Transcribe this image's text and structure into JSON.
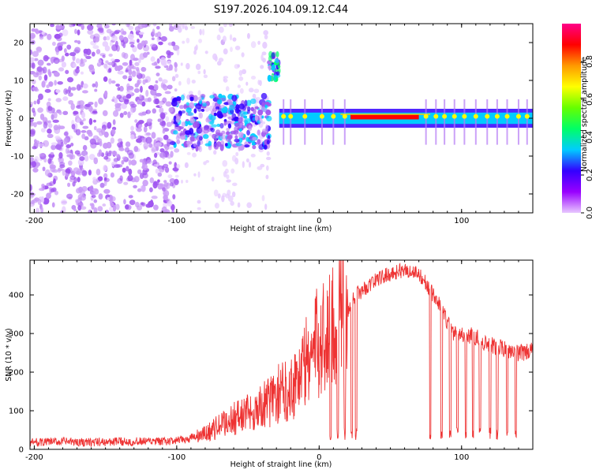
{
  "title": "S197.2026.104.09.12.C44",
  "chart_data": [
    {
      "type": "heatmap",
      "xlabel": "Height of straight line (km)",
      "ylabel": "Frequency (Hz)",
      "xlim": [
        -203,
        150
      ],
      "ylim": [
        -25,
        25
      ],
      "xticks": [
        -200,
        -100,
        0,
        100
      ],
      "xtick_labels": [
        "-200",
        "-100",
        "0",
        "100"
      ],
      "yticks": [
        -20,
        -10,
        0,
        10,
        20
      ],
      "ytick_labels": [
        "-20",
        "-10",
        "0",
        "10",
        "20"
      ],
      "colorbar": {
        "label": "Normalized spectral amplitude",
        "range": [
          0,
          1
        ],
        "ticks": [
          0.0,
          0.2,
          0.4,
          0.6,
          0.8
        ],
        "tick_labels": [
          "0.0",
          "0.2",
          "0.4",
          "0.6",
          "0.8"
        ],
        "colors": [
          "#e8c8ff",
          "#9900ff",
          "#3300ff",
          "#00ccff",
          "#00ff66",
          "#66ff00",
          "#ffff00",
          "#ff9900",
          "#ff0000",
          "#ff0088"
        ]
      },
      "regions": [
        {
          "name": "scattered noise",
          "x": [
            -203,
            -100
          ],
          "freq": [
            -25,
            25
          ],
          "amplitude": 0.1
        },
        {
          "name": "sparse noise",
          "x": [
            -100,
            -35
          ],
          "freq": [
            -25,
            25
          ],
          "amplitude": 0.03
        },
        {
          "name": "dense patch",
          "x": [
            -103,
            -35
          ],
          "freq": [
            -8,
            6
          ],
          "amplitude": 0.2
        },
        {
          "name": "burst",
          "x": [
            -35,
            -28
          ],
          "freq": [
            10,
            17
          ],
          "amplitude": 0.35
        },
        {
          "name": "carrier line",
          "x": [
            -28,
            150
          ],
          "freq": [
            -1.5,
            1.5
          ],
          "amplitude": 0.95
        }
      ]
    },
    {
      "type": "line",
      "xlabel": "Height of straight line (km)",
      "ylabel": "SNR (10 * v/v)",
      "xlim": [
        -203,
        150
      ],
      "ylim": [
        0,
        490
      ],
      "xticks": [
        -200,
        -100,
        0,
        100
      ],
      "xtick_labels": [
        "-200",
        "-100",
        "0",
        "100"
      ],
      "yticks": [
        0,
        100,
        200,
        300,
        400
      ],
      "ytick_labels": [
        "0",
        "100",
        "200",
        "300",
        "400"
      ],
      "color": "#ee3333",
      "x": [
        -203,
        -180,
        -160,
        -140,
        -120,
        -110,
        -100,
        -90,
        -80,
        -70,
        -60,
        -50,
        -40,
        -30,
        -20,
        -10,
        0,
        5,
        10,
        20,
        25,
        30,
        40,
        50,
        60,
        70,
        75,
        80,
        85,
        90,
        95,
        100,
        110,
        120,
        130,
        140,
        150
      ],
      "y": [
        18,
        20,
        18,
        20,
        20,
        20,
        22,
        28,
        40,
        60,
        80,
        95,
        110,
        140,
        160,
        220,
        280,
        300,
        320,
        355,
        400,
        410,
        440,
        455,
        465,
        455,
        430,
        400,
        370,
        330,
        300,
        300,
        290,
        270,
        260,
        250,
        255
      ],
      "dropouts": [
        8,
        13,
        18,
        23,
        26,
        78,
        86,
        92,
        97,
        103,
        108,
        113,
        120,
        125,
        132,
        138
      ],
      "dropout_level": 40
    }
  ]
}
